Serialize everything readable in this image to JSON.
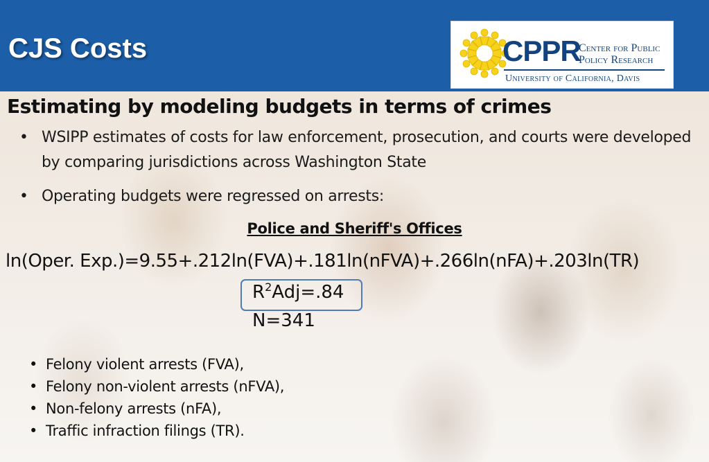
{
  "header": {
    "title": "CJS Costs",
    "brand_color": "#1c5ea8"
  },
  "logo": {
    "acronym": "CPPR",
    "center_line1": "Center for Public",
    "center_line2": "Policy Research",
    "university": "University of California, Davis",
    "icon": "sun-people-logo-icon",
    "logo_yellow": "#f6d21a",
    "logo_blue": "#13437f"
  },
  "subtitle": "Estimating by modeling budgets in terms of crimes",
  "bullets": [
    "WSIPP estimates of costs for law enforcement, prosecution, and courts were developed by comparing jurisdictions across Washington State",
    "Operating budgets were regressed on arrests:"
  ],
  "model": {
    "heading": "Police and Sheriff's Offices",
    "equation": "ln(Oper. Exp.)=9.55+.212ln(FVA)+.181ln(nFVA)+.266ln(nFA)+.203ln(TR)",
    "r2_prefix": "R",
    "r2_sup": "2",
    "r2_suffix": "Adj=.84",
    "n": "N=341"
  },
  "definitions": [
    "Felony violent arrests (FVA),",
    "Felony non-violent arrests (nFVA),",
    "Non-felony arrests (nFA),",
    "Traffic infraction filings (TR)."
  ]
}
